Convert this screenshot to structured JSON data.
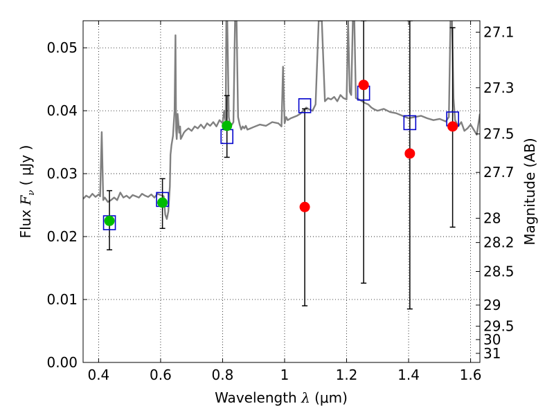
{
  "chart_data": {
    "type": "scatter",
    "xlabel": {
      "prefix": "Wavelength  ",
      "var": "λ",
      "unit": " (μm)"
    },
    "ylabel": {
      "prefix": "Flux  ",
      "var": "F",
      "sub": "ν",
      "unit": "  ( μJy )"
    },
    "ylabel_right": "Magnitude (AB)",
    "xlim": [
      0.35,
      1.63
    ],
    "ylim": [
      0.0,
      0.0543
    ],
    "grid": true,
    "x_ticks": [
      0.4,
      0.6,
      0.8,
      1.0,
      1.2,
      1.4,
      1.6
    ],
    "x_tick_labels": [
      "0.4",
      "0.6",
      "0.8",
      "1",
      "1.2",
      "1.4",
      "1.6"
    ],
    "y_ticks": [
      0.0,
      0.01,
      0.02,
      0.03,
      0.04,
      0.05
    ],
    "y_tick_labels": [
      "0.00",
      "0.01",
      "0.02",
      "0.03",
      "0.04",
      "0.05"
    ],
    "mag_ticks": [
      27.1,
      27.3,
      27.5,
      27.7,
      28,
      28.2,
      28.5,
      29,
      29.5,
      30,
      31
    ],
    "mag_tick_labels": [
      "27.1",
      "27.3",
      "27.5",
      "27.7",
      "28",
      "28.2",
      "28.5",
      "29",
      "29.5",
      "30",
      "31"
    ],
    "colors": {
      "detected": "#00bb00",
      "low_snr": "#ff0000",
      "model": "#0000cc",
      "spectrum": "#808080",
      "errorbar": "#000000"
    },
    "model_photometry": [
      {
        "x": 0.435,
        "y": 0.0222
      },
      {
        "x": 0.606,
        "y": 0.0259
      },
      {
        "x": 0.814,
        "y": 0.0359
      },
      {
        "x": 1.065,
        "y": 0.0408
      },
      {
        "x": 1.255,
        "y": 0.0428
      },
      {
        "x": 1.404,
        "y": 0.0381
      },
      {
        "x": 1.542,
        "y": 0.0387
      }
    ],
    "observed_photometry": [
      {
        "x": 0.435,
        "y": 0.0225,
        "err_lo": 0.0179,
        "err_hi": 0.0273,
        "color": "detected"
      },
      {
        "x": 0.606,
        "y": 0.0254,
        "err_lo": 0.0213,
        "err_hi": 0.0292,
        "color": "detected"
      },
      {
        "x": 0.814,
        "y": 0.0376,
        "err_lo": 0.0326,
        "err_hi": 0.0424,
        "color": "detected"
      },
      {
        "x": 1.065,
        "y": 0.0247,
        "err_lo": 0.009,
        "err_hi": 0.0403,
        "color": "low_snr"
      },
      {
        "x": 1.255,
        "y": 0.0441,
        "err_lo": 0.0126,
        "err_hi": 0.0543,
        "color": "low_snr"
      },
      {
        "x": 1.404,
        "y": 0.0332,
        "err_lo": 0.0085,
        "err_hi": 0.0543,
        "color": "low_snr"
      },
      {
        "x": 1.542,
        "y": 0.0375,
        "err_lo": 0.0215,
        "err_hi": 0.0532,
        "color": "low_snr"
      }
    ],
    "model_spectrum": {
      "x": [
        0.35,
        0.36,
        0.37,
        0.38,
        0.39,
        0.4,
        0.405,
        0.41,
        0.415,
        0.42,
        0.43,
        0.44,
        0.45,
        0.46,
        0.47,
        0.48,
        0.49,
        0.5,
        0.51,
        0.52,
        0.53,
        0.54,
        0.55,
        0.56,
        0.57,
        0.58,
        0.59,
        0.6,
        0.61,
        0.615,
        0.62,
        0.625,
        0.63,
        0.632,
        0.635,
        0.64,
        0.645,
        0.648,
        0.65,
        0.652,
        0.655,
        0.66,
        0.663,
        0.665,
        0.67,
        0.675,
        0.68,
        0.69,
        0.7,
        0.71,
        0.72,
        0.73,
        0.74,
        0.75,
        0.76,
        0.77,
        0.78,
        0.79,
        0.8,
        0.805,
        0.81,
        0.812,
        0.815,
        0.82,
        0.825,
        0.83,
        0.835,
        0.84,
        0.845,
        0.85,
        0.855,
        0.86,
        0.865,
        0.87,
        0.875,
        0.88,
        0.89,
        0.9,
        0.92,
        0.94,
        0.96,
        0.98,
        0.99,
        0.995,
        1.0,
        1.005,
        1.01,
        1.02,
        1.04,
        1.05,
        1.06,
        1.07,
        1.08,
        1.09,
        1.1,
        1.11,
        1.12,
        1.13,
        1.14,
        1.15,
        1.16,
        1.17,
        1.18,
        1.19,
        1.2,
        1.205,
        1.21,
        1.215,
        1.22,
        1.225,
        1.23,
        1.24,
        1.25,
        1.26,
        1.27,
        1.28,
        1.29,
        1.3,
        1.32,
        1.34,
        1.36,
        1.38,
        1.4,
        1.42,
        1.44,
        1.46,
        1.48,
        1.5,
        1.52,
        1.53,
        1.535,
        1.54,
        1.545,
        1.55,
        1.56,
        1.57,
        1.58,
        1.59,
        1.6,
        1.61,
        1.62,
        1.63
      ],
      "y": [
        0.026,
        0.0265,
        0.0262,
        0.0268,
        0.0263,
        0.0267,
        0.0264,
        0.0366,
        0.0258,
        0.0262,
        0.0255,
        0.0258,
        0.0262,
        0.0258,
        0.027,
        0.0262,
        0.0265,
        0.0261,
        0.0266,
        0.0264,
        0.0262,
        0.0268,
        0.0265,
        0.0263,
        0.0267,
        0.0262,
        0.0268,
        0.0266,
        0.0264,
        0.0235,
        0.0228,
        0.024,
        0.028,
        0.033,
        0.0345,
        0.036,
        0.04,
        0.052,
        0.037,
        0.0355,
        0.0395,
        0.0365,
        0.0375,
        0.0355,
        0.036,
        0.0365,
        0.0368,
        0.0372,
        0.0368,
        0.0375,
        0.0372,
        0.0378,
        0.0372,
        0.038,
        0.0376,
        0.0382,
        0.0375,
        0.0385,
        0.038,
        0.04,
        0.038,
        0.0543,
        0.0543,
        0.039,
        0.0375,
        0.0378,
        0.0382,
        0.0543,
        0.0543,
        0.039,
        0.0378,
        0.037,
        0.0375,
        0.0372,
        0.0376,
        0.037,
        0.0372,
        0.0374,
        0.0378,
        0.0376,
        0.0382,
        0.038,
        0.0375,
        0.047,
        0.038,
        0.039,
        0.0385,
        0.0388,
        0.0392,
        0.0395,
        0.04,
        0.0405,
        0.0402,
        0.04,
        0.041,
        0.0543,
        0.0543,
        0.0415,
        0.042,
        0.0418,
        0.0422,
        0.0415,
        0.0425,
        0.042,
        0.0418,
        0.0543,
        0.043,
        0.0425,
        0.0543,
        0.0543,
        0.042,
        0.0418,
        0.0415,
        0.0412,
        0.041,
        0.0405,
        0.0402,
        0.04,
        0.0403,
        0.0398,
        0.0396,
        0.0392,
        0.0388,
        0.039,
        0.0392,
        0.0388,
        0.0385,
        0.0387,
        0.0383,
        0.039,
        0.0543,
        0.0543,
        0.042,
        0.0385,
        0.0375,
        0.0382,
        0.0368,
        0.0372,
        0.0378,
        0.037,
        0.0362,
        0.0395
      ]
    }
  }
}
